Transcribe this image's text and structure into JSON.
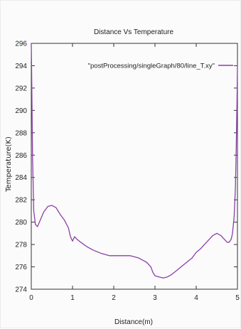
{
  "chart_data": {
    "type": "line",
    "title": "Distance Vs Temperature",
    "xlabel": "Distance(m)",
    "ylabel": "Temperature(K)",
    "xlim": [
      0,
      5
    ],
    "ylim": [
      274,
      296
    ],
    "xticks": [
      0,
      1,
      2,
      3,
      4,
      5
    ],
    "yticks": [
      274,
      276,
      278,
      280,
      282,
      284,
      286,
      288,
      290,
      292,
      294,
      296
    ],
    "grid": false,
    "legend_position": "top-right",
    "series": [
      {
        "name": "\"postProcessing/singleGraph/80/line_T.xy\"",
        "color": "#8b3fa6",
        "x": [
          0,
          0.01,
          0.03,
          0.06,
          0.1,
          0.15,
          0.22,
          0.3,
          0.4,
          0.5,
          0.6,
          0.7,
          0.8,
          0.9,
          0.95,
          1.0,
          1.05,
          1.1,
          1.2,
          1.35,
          1.5,
          1.7,
          1.9,
          2.0,
          2.1,
          2.2,
          2.3,
          2.4,
          2.5,
          2.6,
          2.7,
          2.8,
          2.9,
          2.95,
          3.0,
          3.1,
          3.2,
          3.3,
          3.4,
          3.5,
          3.6,
          3.7,
          3.8,
          3.9,
          4.0,
          4.1,
          4.2,
          4.3,
          4.4,
          4.5,
          4.6,
          4.7,
          4.75,
          4.8,
          4.85,
          4.88,
          4.92,
          4.95,
          4.97,
          4.99,
          5.0
        ],
        "y": [
          296,
          293,
          286,
          281,
          279.8,
          279.6,
          280.2,
          280.9,
          281.4,
          281.5,
          281.3,
          280.7,
          280.2,
          279.5,
          278.7,
          278.3,
          278.7,
          278.5,
          278.2,
          277.8,
          277.5,
          277.2,
          277.0,
          277.0,
          277.0,
          277.0,
          277.0,
          277.0,
          276.9,
          276.8,
          276.6,
          276.4,
          276.0,
          275.5,
          275.2,
          275.1,
          275.0,
          275.1,
          275.3,
          275.6,
          275.9,
          276.2,
          276.5,
          276.8,
          277.3,
          277.6,
          278.0,
          278.4,
          278.8,
          279.0,
          278.8,
          278.4,
          278.2,
          278.2,
          278.5,
          279.0,
          280.5,
          283.0,
          286.5,
          291.0,
          294.0
        ]
      }
    ]
  }
}
